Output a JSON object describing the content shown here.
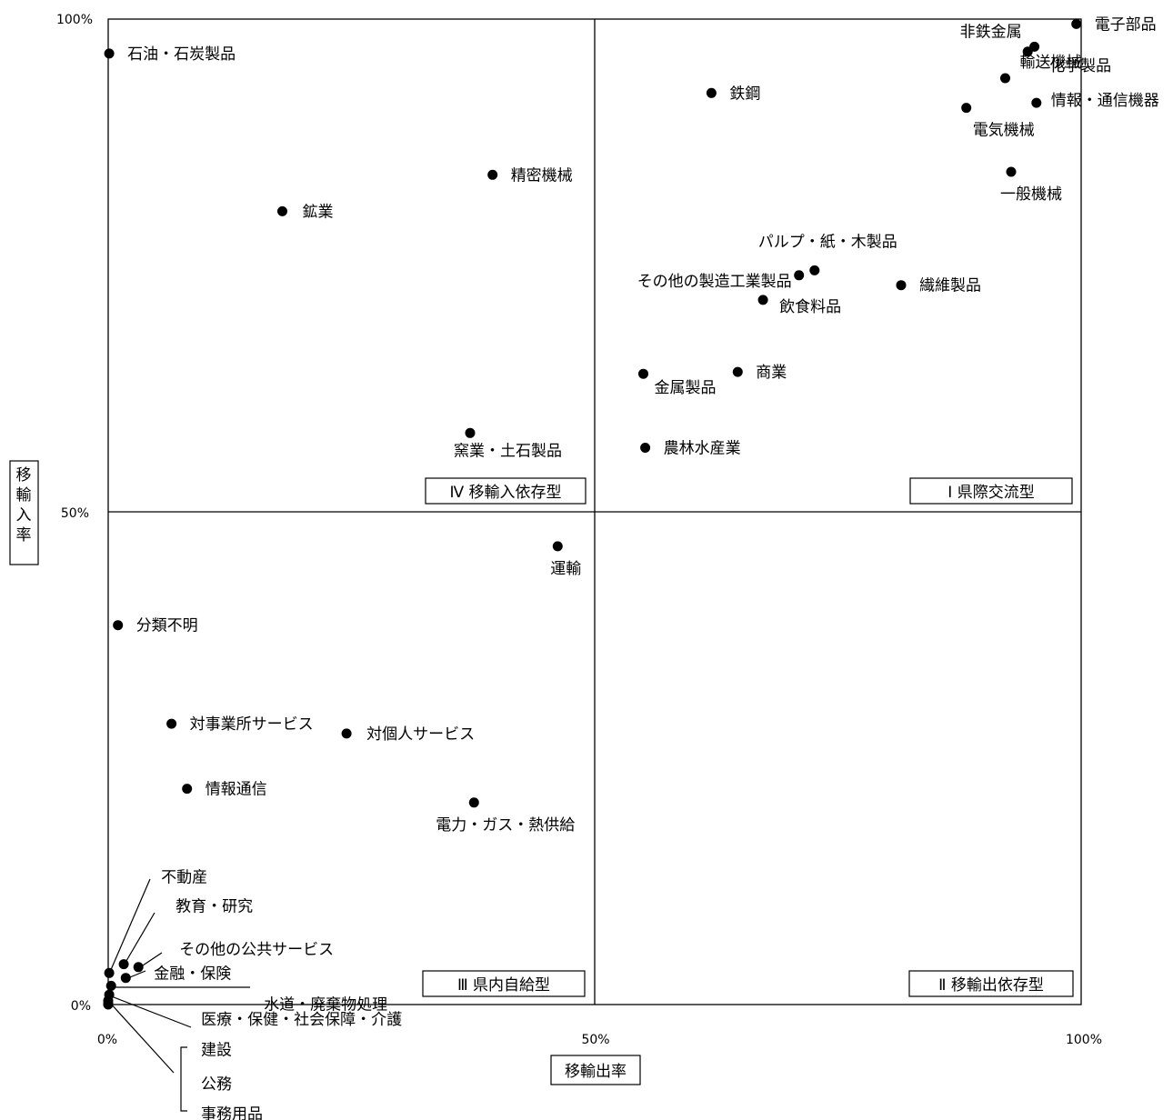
{
  "chart_data": {
    "type": "scatter",
    "title": "",
    "xlabel": "移輸出率",
    "ylabel": "移輸入率",
    "xlim": [
      0,
      100
    ],
    "ylim": [
      0,
      100
    ],
    "grid": false,
    "x_ticks": [
      "0%",
      "50%",
      "100%"
    ],
    "y_ticks": [
      "0%",
      "50%",
      "100%"
    ],
    "quadrants": [
      {
        "id": "I",
        "label": "Ⅰ 県際交流型"
      },
      {
        "id": "II",
        "label": "Ⅱ 移輸出依存型"
      },
      {
        "id": "III",
        "label": "Ⅲ 県内自給型"
      },
      {
        "id": "IV",
        "label": "Ⅳ 移輸入依存型"
      }
    ],
    "points": [
      {
        "label": "電子部品",
        "x": 99.5,
        "y": 99.5
      },
      {
        "label": "非鉄金属",
        "x": 95.2,
        "y": 97.2
      },
      {
        "label": "化学製品",
        "x": 94.5,
        "y": 96.7
      },
      {
        "label": "輸送機械",
        "x": 92.2,
        "y": 94.0
      },
      {
        "label": "情報・通信機器",
        "x": 95.4,
        "y": 91.5
      },
      {
        "label": "電気機械",
        "x": 88.2,
        "y": 91.0
      },
      {
        "label": "一般機械",
        "x": 92.8,
        "y": 84.5
      },
      {
        "label": "鉄鋼",
        "x": 62.0,
        "y": 92.5
      },
      {
        "label": "石油・石炭製品",
        "x": 0.1,
        "y": 96.5
      },
      {
        "label": "精密機械",
        "x": 39.5,
        "y": 84.2
      },
      {
        "label": "鉱業",
        "x": 17.9,
        "y": 80.5
      },
      {
        "label": "パルプ・紙・木製品",
        "x": 72.6,
        "y": 74.5
      },
      {
        "label": "その他の製造工業製品",
        "x": 71.0,
        "y": 74.0
      },
      {
        "label": "飲食料品",
        "x": 67.3,
        "y": 71.5
      },
      {
        "label": "繊維製品",
        "x": 81.5,
        "y": 73.0
      },
      {
        "label": "金属製品",
        "x": 55.0,
        "y": 64.0
      },
      {
        "label": "商業",
        "x": 64.7,
        "y": 64.2
      },
      {
        "label": "窯業・土石製品",
        "x": 37.2,
        "y": 58.0
      },
      {
        "label": "農林水産業",
        "x": 55.2,
        "y": 56.5
      },
      {
        "label": "運輸",
        "x": 46.2,
        "y": 46.5
      },
      {
        "label": "分類不明",
        "x": 1.0,
        "y": 38.5
      },
      {
        "label": "対事業所サービス",
        "x": 6.5,
        "y": 28.5
      },
      {
        "label": "対個人サービス",
        "x": 24.5,
        "y": 27.5
      },
      {
        "label": "情報通信",
        "x": 8.1,
        "y": 21.9
      },
      {
        "label": "電力・ガス・熱供給",
        "x": 37.6,
        "y": 20.5
      },
      {
        "label": "不動産",
        "x": 0.1,
        "y": 3.2
      },
      {
        "label": "教育・研究",
        "x": 1.6,
        "y": 4.1
      },
      {
        "label": "その他の公共サービス",
        "x": 3.1,
        "y": 3.8
      },
      {
        "label": "金融・保険",
        "x": 1.8,
        "y": 2.7
      },
      {
        "label": "水道・廃棄物処理",
        "x": 0.3,
        "y": 1.9
      },
      {
        "label": "医療・保健・社会保障・介護",
        "x": 0.1,
        "y": 1.0
      },
      {
        "label": "建設",
        "x": 0.0,
        "y": 0.4
      },
      {
        "label": "公務",
        "x": 0.0,
        "y": 0.1
      },
      {
        "label": "事務用品",
        "x": 0.0,
        "y": 0.0
      }
    ]
  }
}
